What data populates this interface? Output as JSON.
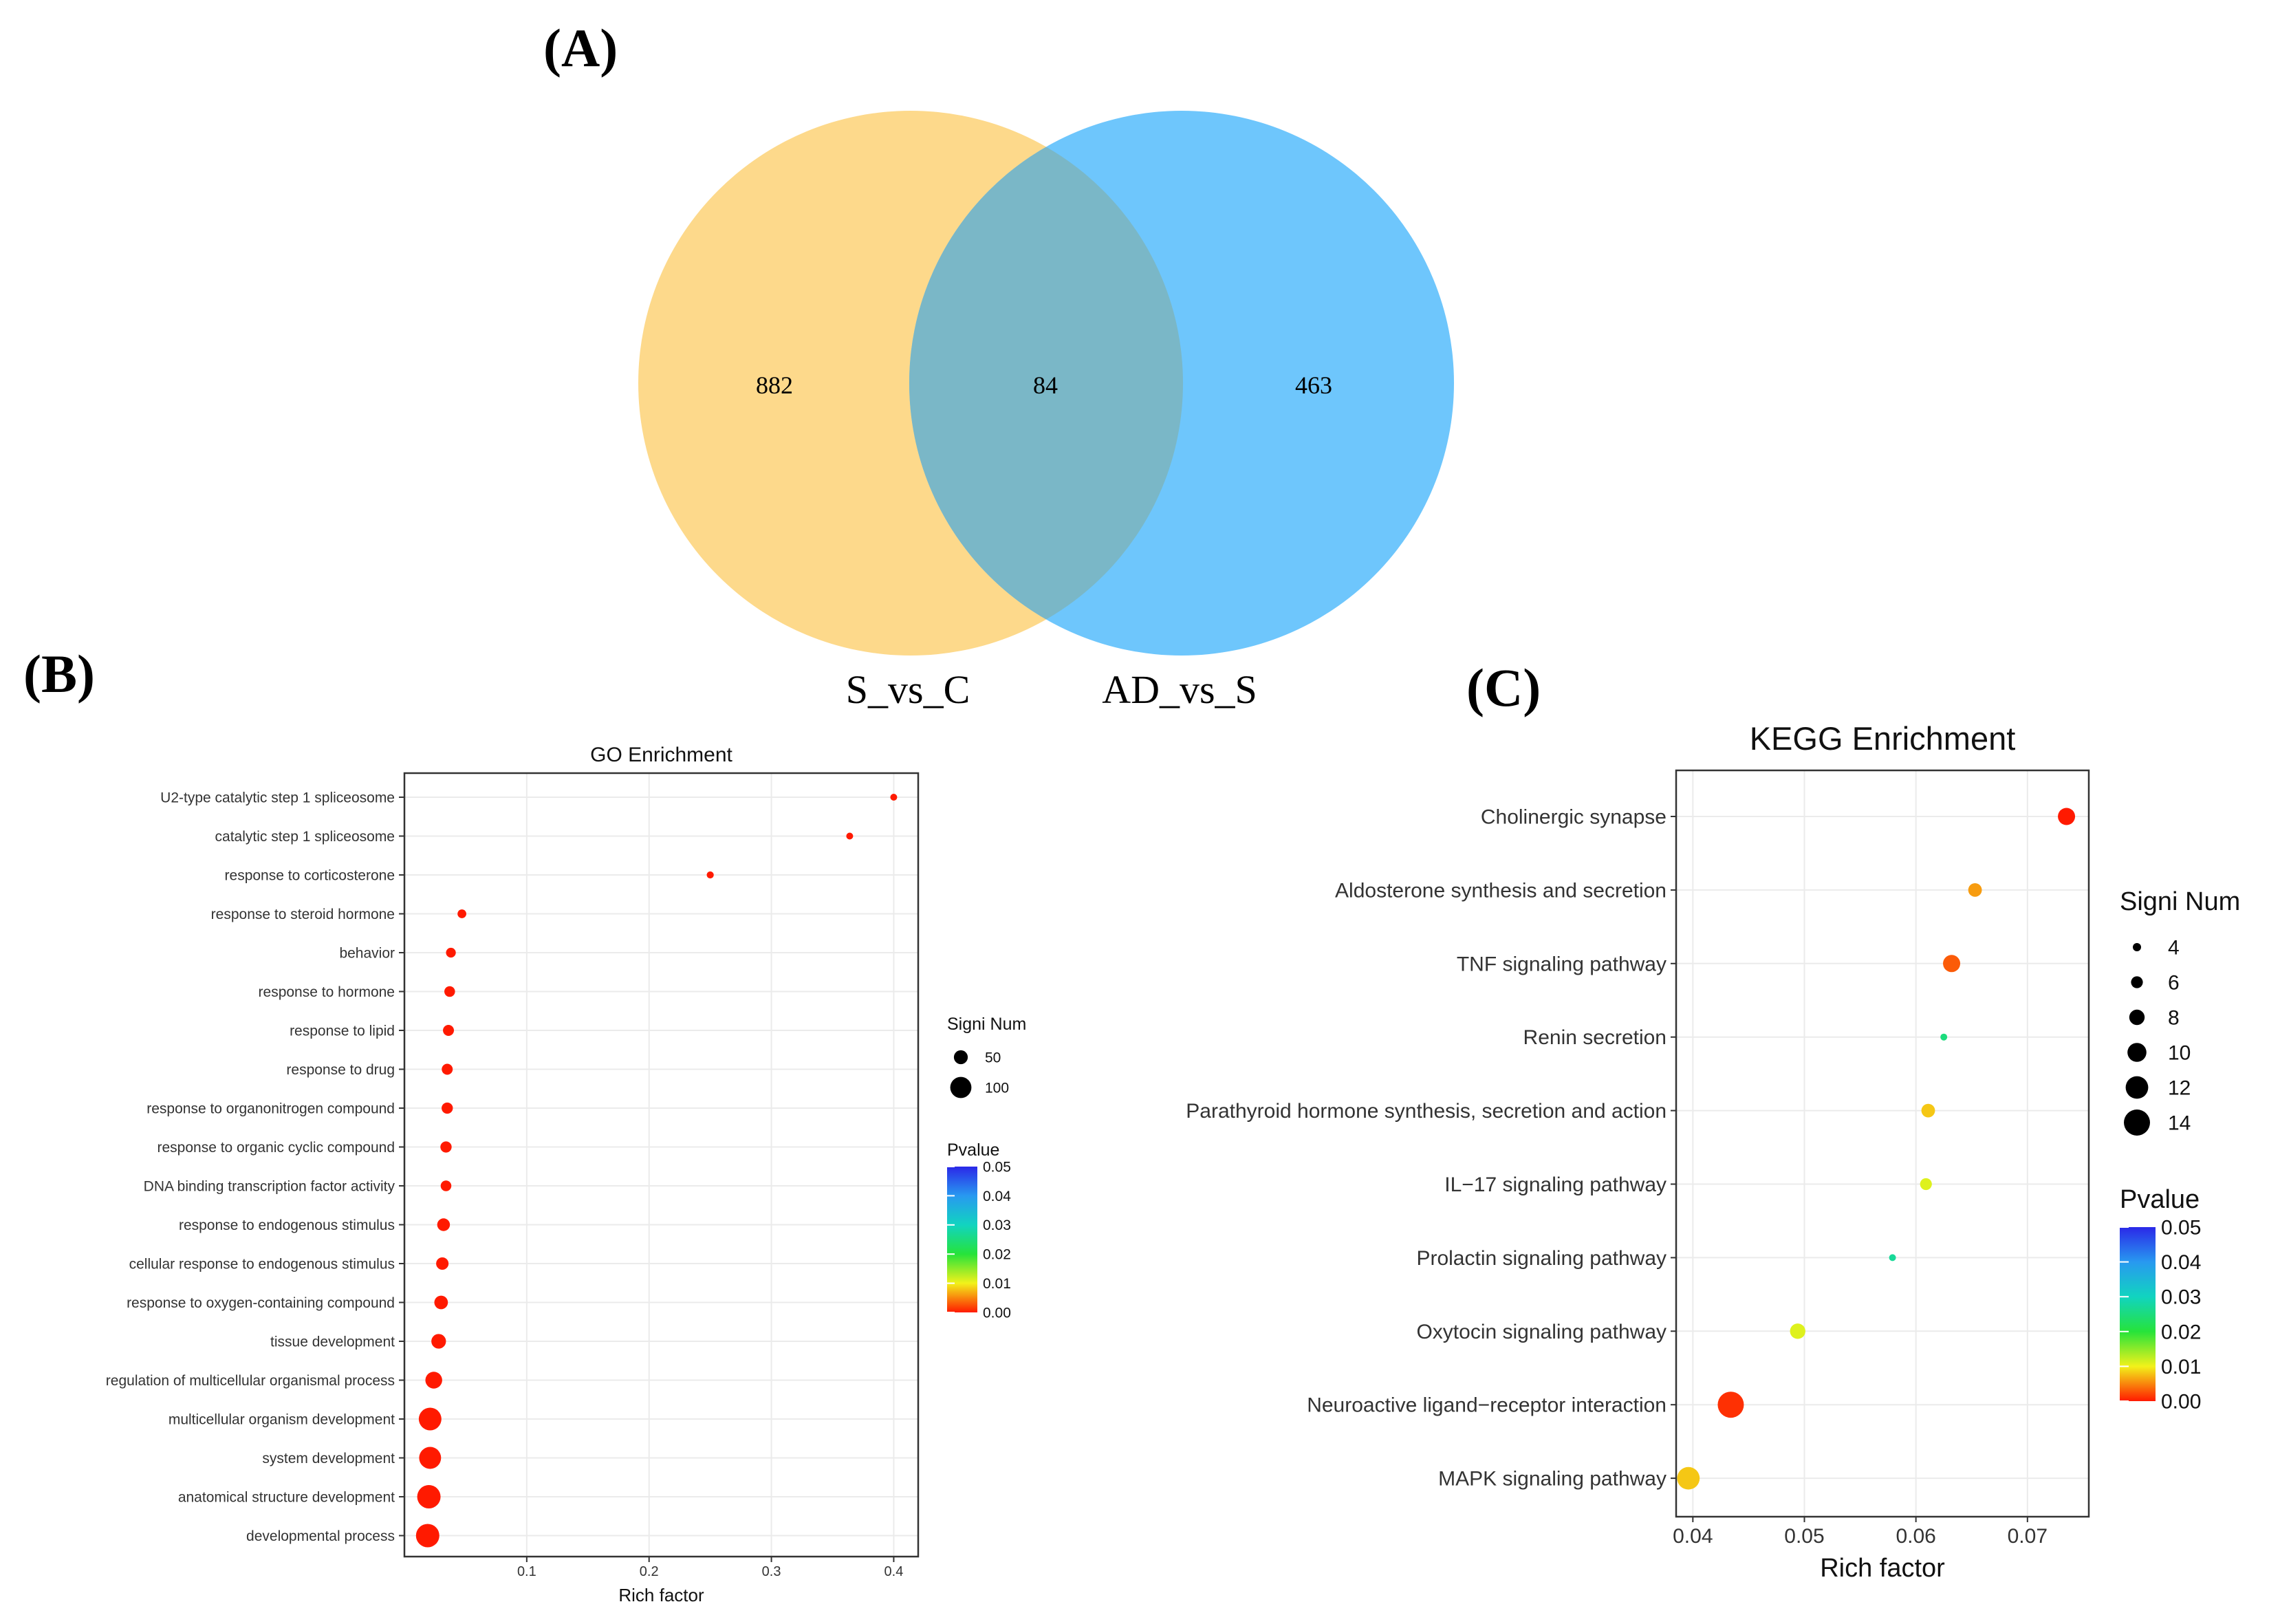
{
  "panels": {
    "a": "(A)",
    "b": "(B)",
    "c": "(C)"
  },
  "chart_data": [
    {
      "type": "venn",
      "sets": [
        {
          "name": "S_vs_C",
          "only": 882,
          "color": "#fdd98b"
        },
        {
          "name": "AD_vs_S",
          "only": 463,
          "color": "#6ec6fc"
        }
      ],
      "overlap": 84,
      "overlap_color": "#7ab7c7"
    },
    {
      "type": "scatter",
      "title": "GO Enrichment",
      "xlabel": "Rich factor",
      "ylabel": "",
      "xlim": [
        0,
        0.42
      ],
      "xticks": [
        0.1,
        0.2,
        0.3,
        0.4
      ],
      "xtick_labels": [
        "0.1",
        "0.2",
        "0.3",
        "0.4"
      ],
      "terms": [
        "U2-type catalytic step 1 spliceosome",
        "catalytic step 1 spliceosome",
        "response to corticosterone",
        "response to steroid hormone",
        "behavior",
        "response to hormone",
        "response to lipid",
        "response to drug",
        "response to organonitrogen compound",
        "response to organic cyclic compound",
        "DNA binding transcription factor activity",
        "response to endogenous stimulus",
        "cellular response to endogenous stimulus",
        "response to oxygen-containing compound",
        "tissue development",
        "regulation of multicellular organismal process",
        "multicellular organism development",
        "system development",
        "anatomical structure development",
        "developmental process"
      ],
      "rich_factor": [
        0.4,
        0.364,
        0.25,
        0.047,
        0.038,
        0.037,
        0.036,
        0.035,
        0.035,
        0.034,
        0.034,
        0.032,
        0.031,
        0.03,
        0.028,
        0.024,
        0.021,
        0.021,
        0.02,
        0.019
      ],
      "signi_num": [
        2,
        2,
        3,
        15,
        22,
        28,
        30,
        30,
        32,
        32,
        28,
        42,
        40,
        48,
        55,
        70,
        110,
        105,
        115,
        115
      ],
      "pvalue": [
        0,
        0,
        0,
        0,
        0,
        0,
        0,
        0,
        0,
        0,
        0,
        0,
        0,
        0,
        0,
        0,
        0,
        0,
        0,
        0
      ],
      "size_legend": {
        "title": "Signi Num",
        "values": [
          50,
          100
        ],
        "labels": [
          "50",
          "100"
        ]
      },
      "color_legend": {
        "title": "Pvalue",
        "labels": [
          "0.05",
          "0.04",
          "0.03",
          "0.02",
          "0.01",
          "0.00"
        ]
      }
    },
    {
      "type": "scatter",
      "title": "KEGG Enrichment",
      "xlabel": "Rich factor",
      "ylabel": "",
      "xlim": [
        0.0385,
        0.0755
      ],
      "xticks": [
        0.04,
        0.05,
        0.06,
        0.07
      ],
      "xtick_labels": [
        "0.04",
        "0.05",
        "0.06",
        "0.07"
      ],
      "terms": [
        "Cholinergic synapse",
        "Aldosterone synthesis and secretion",
        "TNF signaling pathway",
        "Renin secretion",
        "Parathyroid hormone synthesis, secretion and action",
        "IL−17 signaling pathway",
        "Prolactin signaling pathway",
        "Oxytocin signaling pathway",
        "Neuroactive ligand−receptor interaction",
        "MAPK signaling pathway"
      ],
      "rich_factor": [
        0.0735,
        0.0653,
        0.0632,
        0.0625,
        0.0611,
        0.0609,
        0.0579,
        0.0494,
        0.0434,
        0.0396
      ],
      "signi_num": [
        9,
        7,
        9,
        3,
        7,
        6,
        3,
        8,
        14,
        12
      ],
      "pvalue": [
        0.0,
        0.006,
        0.003,
        0.025,
        0.008,
        0.011,
        0.027,
        0.011,
        0.001,
        0.008
      ],
      "size_legend": {
        "title": "Signi Num",
        "values": [
          4,
          6,
          8,
          10,
          12,
          14
        ],
        "labels": [
          "4",
          "6",
          "8",
          "10",
          "12",
          "14"
        ]
      },
      "color_legend": {
        "title": "Pvalue",
        "labels": [
          "0.05",
          "0.04",
          "0.03",
          "0.02",
          "0.01",
          "0.00"
        ]
      }
    }
  ]
}
